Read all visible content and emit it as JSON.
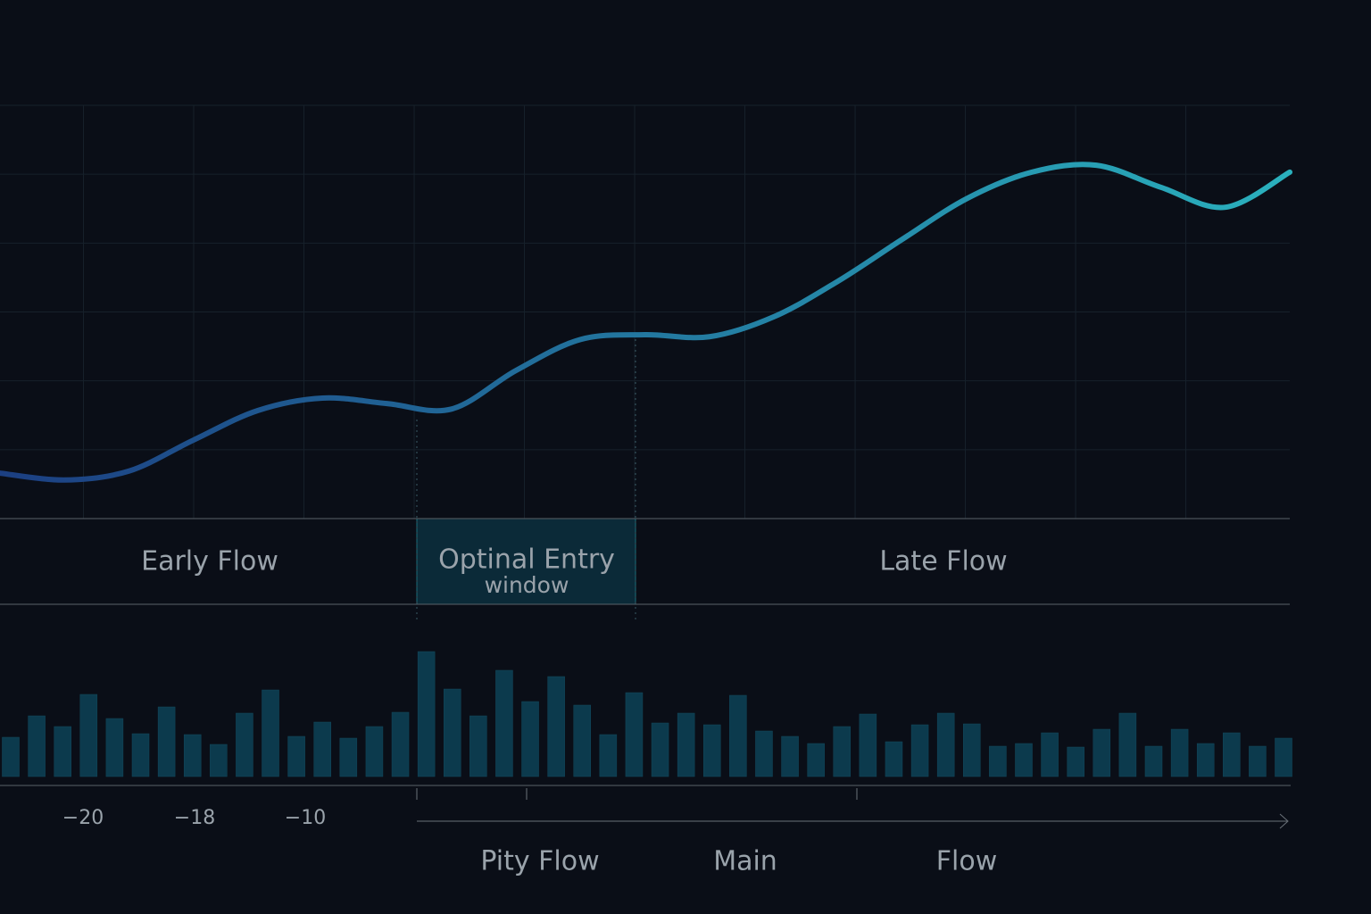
{
  "chart_data": [
    {
      "type": "line",
      "values": [
        0.66,
        0.56,
        0.69,
        1.14,
        1.57,
        1.75,
        1.67,
        1.59,
        2.15,
        2.6,
        2.67,
        2.64,
        2.93,
        3.45,
        4.06,
        4.65,
        5.03,
        5.13,
        4.81,
        4.52,
        5.03
      ],
      "ylim": [
        0,
        6
      ],
      "grid": true,
      "grid_rows": 6,
      "grid_cols": 12,
      "color_start": "#1c3f82",
      "color_end": "#2ab0bd",
      "bands": [
        {
          "label": "Early Flow"
        },
        {
          "label": "Optinal Entry",
          "sublabel": "window"
        },
        {
          "label": "Late Flow"
        }
      ]
    },
    {
      "type": "bar",
      "values": [
        44,
        68,
        56,
        92,
        65,
        48,
        78,
        47,
        36,
        71,
        97,
        45,
        61,
        43,
        56,
        72,
        140,
        98,
        68,
        119,
        84,
        112,
        80,
        47,
        94,
        60,
        71,
        58,
        91,
        51,
        45,
        37,
        56,
        70,
        39,
        58,
        71,
        59,
        34,
        37,
        49,
        33,
        53,
        71,
        34,
        53,
        37,
        49,
        34,
        43
      ],
      "ylim": [
        0,
        150
      ],
      "color": "#0c3a4d",
      "x_labels": [
        "−20",
        "−18",
        "−10"
      ],
      "axis_labels": [
        "Pity Flow",
        "Main",
        "Flow"
      ]
    }
  ]
}
